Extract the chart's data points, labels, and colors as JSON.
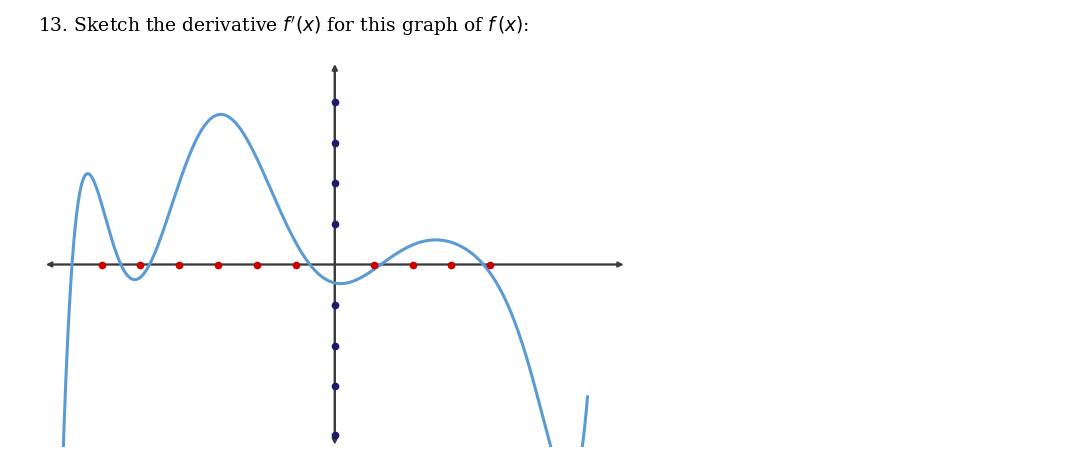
{
  "background_color": "#ffffff",
  "curve_color": "#5b9bd5",
  "axis_color": "#3a3a3a",
  "dot_color_x": "#cc0000",
  "dot_color_y": "#1a1a6e",
  "x_ticks": [
    -6,
    -5,
    -4,
    -3,
    -2,
    -1,
    1,
    2,
    3,
    4
  ],
  "y_ticks": [
    -3,
    -2,
    -1,
    1,
    2,
    3,
    4
  ],
  "xlim": [
    -7.5,
    7.5
  ],
  "ylim": [
    -4.5,
    5.0
  ],
  "fig_width": 10.8,
  "fig_height": 4.71,
  "dpi": 100,
  "title": "13. Sketch the derivative $f'(x)$ for this graph of $f\\,(x)$:"
}
